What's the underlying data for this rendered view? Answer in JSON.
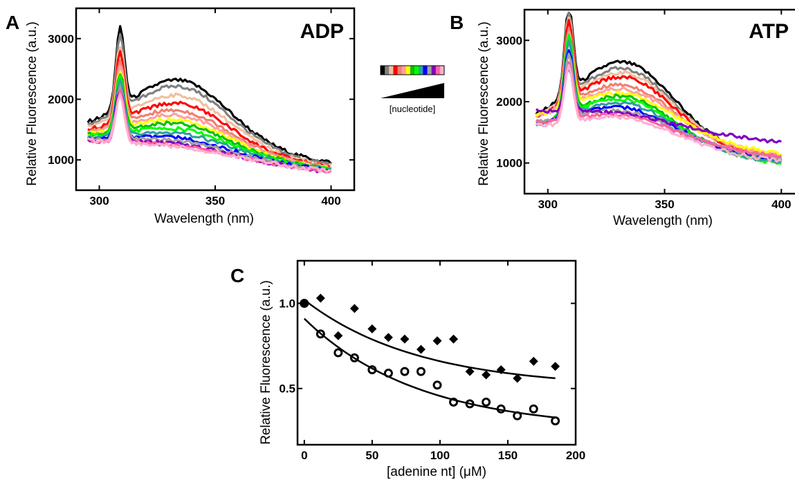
{
  "figure": {
    "panels": [
      {
        "letter": "A",
        "inset_label": "ADP"
      },
      {
        "letter": "B",
        "inset_label": "ATP"
      },
      {
        "letter": "C",
        "inset_label": ""
      }
    ],
    "legend": {
      "label": "[nucleotide]",
      "swatch_colors": [
        "#000000",
        "#808080",
        "#f0c0a0",
        "#ff0000",
        "#f08070",
        "#ffa0a0",
        "#ffff00",
        "#00c000",
        "#00ff00",
        "#30a0a0",
        "#0000ff",
        "#a0a0a0",
        "#8000c0",
        "#ff60a0",
        "#ffb0d0"
      ]
    }
  },
  "chart_data": [
    {
      "panel": "A",
      "type": "line",
      "inset_label": "ADP",
      "xlabel": "Wavelength (nm)",
      "ylabel": "Relative Fluorescence (a.u.)",
      "xlim": [
        290,
        410
      ],
      "ylim": [
        500,
        3500
      ],
      "xticks": [
        300,
        350,
        400
      ],
      "yticks": [
        1000,
        2000,
        3000
      ],
      "curve_model": {
        "x_start": 295,
        "x_end": 400,
        "step": 1,
        "peak_nm": 309,
        "broad_center_nm": 335
      },
      "series": [
        {
          "color": "#000000",
          "peak": 2750,
          "broad": 2500,
          "tail": 950
        },
        {
          "color": "#808080",
          "peak": 2650,
          "broad": 2400,
          "tail": 920
        },
        {
          "color": "#f0c0a0",
          "peak": 2550,
          "broad": 2250,
          "tail": 900
        },
        {
          "color": "#ff0000",
          "peak": 2500,
          "broad": 2120,
          "tail": 880
        },
        {
          "color": "#f08070",
          "peak": 2420,
          "broad": 2000,
          "tail": 870
        },
        {
          "color": "#ffa0a0",
          "peak": 2350,
          "broad": 1920,
          "tail": 860
        },
        {
          "color": "#ffff00",
          "peak": 2300,
          "broad": 1850,
          "tail": 850
        },
        {
          "color": "#00c000",
          "peak": 2280,
          "broad": 1780,
          "tail": 845
        },
        {
          "color": "#00ff00",
          "peak": 2250,
          "broad": 1700,
          "tail": 840
        },
        {
          "color": "#30a0a0",
          "peak": 2230,
          "broad": 1620,
          "tail": 830
        },
        {
          "color": "#0000ff",
          "peak": 2200,
          "broad": 1550,
          "tail": 820
        },
        {
          "color": "#a0a0a0",
          "peak": 2180,
          "broad": 1500,
          "tail": 815
        },
        {
          "color": "#8000c0",
          "peak": 2150,
          "broad": 1450,
          "tail": 790
        },
        {
          "color": "#ff60a0",
          "peak": 2120,
          "broad": 1420,
          "tail": 800
        },
        {
          "color": "#ffb0d0",
          "peak": 2100,
          "broad": 1400,
          "tail": 810
        }
      ]
    },
    {
      "panel": "B",
      "type": "line",
      "inset_label": "ATP",
      "xlabel": "Wavelength (nm)",
      "ylabel": "Relative Fluorescence (a.u.)",
      "xlim": [
        290,
        410
      ],
      "ylim": [
        500,
        3500
      ],
      "xticks": [
        300,
        350,
        400
      ],
      "yticks": [
        1000,
        2000,
        3000
      ],
      "curve_model": {
        "x_start": 295,
        "x_end": 400,
        "step": 1,
        "peak_nm": 309,
        "broad_center_nm": 333
      },
      "series": [
        {
          "color": "#000000",
          "peak": 2950,
          "broad": 2820,
          "tail": 1050
        },
        {
          "color": "#808080",
          "peak": 2900,
          "broad": 2720,
          "tail": 1040
        },
        {
          "color": "#f0c0a0",
          "peak": 2880,
          "broad": 2650,
          "tail": 1050
        },
        {
          "color": "#ff0000",
          "peak": 2850,
          "broad": 2580,
          "tail": 1060
        },
        {
          "color": "#f08070",
          "peak": 2820,
          "broad": 2450,
          "tail": 1100
        },
        {
          "color": "#ffa0a0",
          "peak": 2800,
          "broad": 2380,
          "tail": 1120
        },
        {
          "color": "#ffff00",
          "peak": 2780,
          "broad": 2320,
          "tail": 1150
        },
        {
          "color": "#00c000",
          "peak": 2760,
          "broad": 2260,
          "tail": 1000
        },
        {
          "color": "#00ff00",
          "peak": 2740,
          "broad": 2220,
          "tail": 980
        },
        {
          "color": "#30a0a0",
          "peak": 2700,
          "broad": 2150,
          "tail": 1000
        },
        {
          "color": "#0000ff",
          "peak": 2650,
          "broad": 2080,
          "tail": 1050
        },
        {
          "color": "#a0a0a0",
          "peak": 2600,
          "broad": 2020,
          "tail": 1080
        },
        {
          "color": "#8000c0",
          "peak": 2550,
          "broad": 1980,
          "tail": 1330
        },
        {
          "color": "#ff60a0",
          "peak": 2500,
          "broad": 1950,
          "tail": 1100
        },
        {
          "color": "#ffb0d0",
          "peak": 2450,
          "broad": 1920,
          "tail": 1030
        }
      ]
    },
    {
      "panel": "C",
      "type": "scatter",
      "xlabel": "[adenine nt] (μM)",
      "ylabel": "Relative Fluorescence (a.u.)",
      "xlim": [
        -5,
        200
      ],
      "ylim": [
        0.17,
        1.25
      ],
      "xticks": [
        0,
        50,
        100,
        150,
        200
      ],
      "yticks": [
        0.5,
        1.0
      ],
      "ytick_labels": [
        "0.5",
        "1.0"
      ],
      "series": [
        {
          "marker": "diamond",
          "x": [
            0,
            12,
            25,
            37,
            50,
            62,
            74,
            86,
            98,
            110,
            122,
            134,
            145,
            157,
            169,
            185
          ],
          "y": [
            1.0,
            1.03,
            0.81,
            0.97,
            0.85,
            0.8,
            0.79,
            0.73,
            0.78,
            0.79,
            0.6,
            0.58,
            0.61,
            0.56,
            0.66,
            0.63
          ],
          "fit_x": [
            0,
            185
          ],
          "fit_y": [
            1.02,
            0.56
          ]
        },
        {
          "marker": "open-circle",
          "x": [
            0,
            12,
            25,
            37,
            50,
            62,
            74,
            86,
            98,
            110,
            122,
            134,
            145,
            157,
            169,
            185
          ],
          "y": [
            1.0,
            0.82,
            0.71,
            0.68,
            0.61,
            0.59,
            0.6,
            0.6,
            0.52,
            0.42,
            0.41,
            0.42,
            0.38,
            0.34,
            0.38,
            0.31
          ],
          "fit_x": [
            0,
            185
          ],
          "fit_y": [
            0.91,
            0.33
          ]
        }
      ]
    }
  ]
}
